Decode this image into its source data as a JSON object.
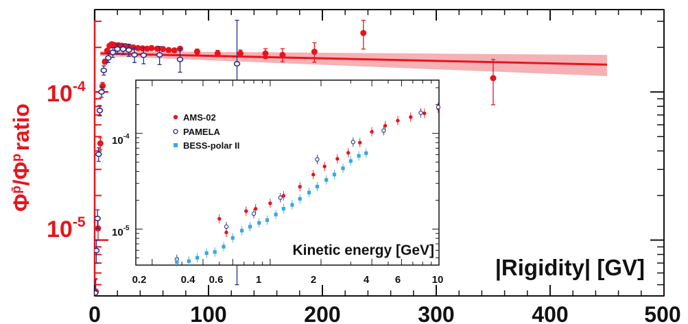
{
  "chart_data": [
    {
      "type": "scatter",
      "xlabel": "|Rigidity| [GV]",
      "ylabel_parts": {
        "phi": "Φ",
        "pbar": "p̄",
        "slash": "/",
        "p": "p",
        "word": "ratio"
      },
      "x_ticks": [
        "0",
        "100",
        "200",
        "300",
        "400",
        "500"
      ],
      "y_ticks": [
        {
          "base": "10",
          "exp": "-4"
        },
        {
          "base": "10",
          "exp": "-5"
        }
      ],
      "xlim": [
        0,
        500
      ],
      "ylim": [
        4.2e-06,
        0.00036
      ],
      "y_scale": "log",
      "colors": {
        "axis": "#e8141c",
        "ams": "#e8141c",
        "pamela": "#2a2a8c",
        "band": "#f4a3a8",
        "fit": "#e8141c"
      },
      "fit_line": {
        "x": [
          5,
          450
        ],
        "y": [
          0.000182,
          0.000153
        ]
      },
      "fit_band": {
        "x": [
          5,
          450
        ],
        "y_low": [
          0.000175,
          0.000128
        ],
        "y_high": [
          0.000189,
          0.000178
        ]
      },
      "series": [
        {
          "name": "AMS-02",
          "marker": "filled-circle",
          "x": [
            1,
            3,
            5,
            7,
            9,
            11,
            13,
            15,
            17,
            19,
            21,
            24,
            27,
            30,
            34,
            38,
            42,
            46,
            50,
            55,
            60,
            65,
            70,
            75,
            90,
            108,
            128,
            150,
            165,
            193,
            236,
            350
          ],
          "y": [
            4.5e-06,
            1.2e-05,
            4.5e-05,
            0.00011,
            0.00016,
            0.00019,
            0.000205,
            0.00021,
            0.000208,
            0.000206,
            0.000207,
            0.000205,
            0.000204,
            0.000202,
            0.0002,
            0.000198,
            0.000197,
            0.000196,
            0.000198,
            0.000196,
            0.000195,
            0.000192,
            0.000191,
            0.000196,
            0.000187,
            0.000182,
            0.000182,
            0.000182,
            0.000178,
            0.000187,
            0.00025,
            0.000124
          ],
          "err": [
            1e-06,
            2e-06,
            4e-06,
            6e-06,
            6e-06,
            6e-06,
            6e-06,
            6e-06,
            6e-06,
            6e-06,
            6e-06,
            6e-06,
            6e-06,
            6e-06,
            6e-06,
            6e-06,
            6e-06,
            6e-06,
            6e-06,
            6e-06,
            6e-06,
            6e-06,
            6e-06,
            6e-06,
            8e-06,
            9e-06,
            1e-05,
            1.4e-05,
            1.8e-05,
            2.8e-05,
            5.5e-05,
            4.2e-05
          ]
        },
        {
          "name": "PAMELA",
          "marker": "open-circle",
          "x": [
            0.5,
            1.5,
            2.5,
            3.5,
            4.5,
            6,
            8,
            12,
            16,
            20,
            25,
            30,
            35,
            43,
            57,
            75,
            125
          ],
          "y": [
            4.4e-06,
            8.5e-06,
            1.4e-05,
            3.8e-05,
            7.5e-05,
            0.0001,
            0.00014,
            0.00017,
            0.000185,
            0.000195,
            0.000195,
            0.000192,
            0.000178,
            0.000177,
            0.000178,
            0.000166,
            0.000155
          ],
          "err": [
            1e-06,
            1.5e-06,
            2e-06,
            4e-06,
            6e-06,
            8e-06,
            1e-05,
            1.2e-05,
            1.4e-05,
            1.5e-05,
            1.6e-05,
            1.8e-05,
            2e-05,
            2.2e-05,
            2.5e-05,
            3e-05,
            0.00015
          ]
        }
      ]
    },
    {
      "type": "scatter",
      "inset": true,
      "xlabel": "Kinetic energy [GeV]",
      "x_scale": "log",
      "y_scale": "log",
      "xlim": [
        0.16,
        10
      ],
      "ylim": [
        4.2e-06,
        0.00036
      ],
      "x_ticks": [
        "0.2",
        "0.4",
        "0.6",
        "1",
        "2",
        "4",
        "6",
        "10"
      ],
      "y_ticks": [
        {
          "base": "10",
          "exp": "-4"
        },
        {
          "base": "10",
          "exp": "-5"
        }
      ],
      "legend_position": "top-left",
      "series": [
        {
          "name": "AMS-02",
          "marker": "filled-circle",
          "color": "#e8141c",
          "x": [
            0.5,
            0.55,
            0.72,
            0.82,
            1.0,
            1.2,
            1.5,
            1.8,
            2.1,
            2.5,
            2.9,
            3.4,
            4.0,
            4.8,
            5.7,
            6.8,
            8.2,
            9.9
          ],
          "y": [
            1.28e-05,
            9.22e-06,
            1.54e-05,
            1.63e-05,
            1.86e-05,
            2.23e-05,
            2.77e-05,
            3.71e-05,
            4.51e-05,
            5.42e-05,
            6.26e-05,
            8.01e-05,
            0.000104,
            0.00012,
            0.000136,
            0.000148,
            0.000162,
            0.000183
          ]
        },
        {
          "name": "PAMELA",
          "marker": "open-circle",
          "color": "#2a2a8c",
          "x": [
            0.28,
            0.55,
            0.8,
            1.15,
            1.9,
            3.1,
            4.7,
            7.8,
            9.9
          ],
          "y": [
            4.83e-06,
            1.06e-05,
            1.45e-05,
            2.13e-05,
            5.34e-05,
            8.11e-05,
            0.000107,
            0.000164,
            0.000188
          ]
        },
        {
          "name": "BESS-polar II",
          "marker": "filled-square",
          "color": "#3aa8e0",
          "x": [
            0.28,
            0.33,
            0.37,
            0.42,
            0.47,
            0.53,
            0.6,
            0.68,
            0.76,
            0.86,
            0.96,
            1.08,
            1.2,
            1.35,
            1.5,
            1.7,
            1.9,
            2.15,
            2.4,
            2.7,
            3.0,
            3.35,
            3.7
          ],
          "y": [
            4.51e-06,
            4.62e-06,
            5.01e-06,
            5.6e-06,
            5.76e-06,
            6.54e-06,
            8.08e-06,
            9.63e-06,
            1.06e-05,
            1.16e-05,
            1.24e-05,
            1.42e-05,
            1.63e-05,
            1.79e-05,
            2.07e-05,
            2.41e-05,
            2.78e-05,
            3.26e-05,
            3.71e-05,
            4.31e-05,
            5.14e-05,
            5.82e-05,
            6.21e-05
          ]
        }
      ]
    }
  ]
}
